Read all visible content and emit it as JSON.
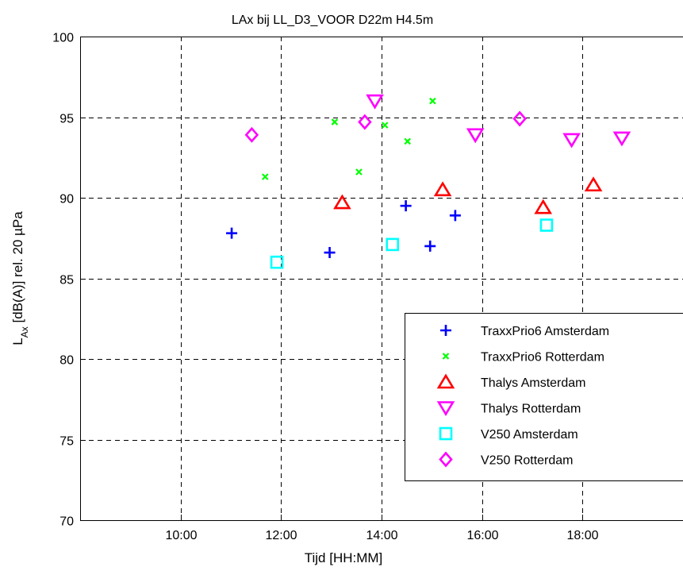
{
  "chart_data": {
    "type": "scatter",
    "title": "LAx bij LL_D3_VOOR D22m H4.5m",
    "xlabel": "Tijd [HH:MM]",
    "ylabel": {
      "main": "L",
      "sub": "Ax",
      "rest": " [dB(A)] rel. 20 µPa"
    },
    "xlim": [
      "08:00",
      "20:00"
    ],
    "ylim": [
      70,
      100
    ],
    "x_ticks": [
      "10:00",
      "12:00",
      "14:00",
      "16:00",
      "18:00"
    ],
    "y_ticks": [
      70,
      75,
      80,
      85,
      90,
      95,
      100
    ],
    "grid": true,
    "legend_position": "lower-right",
    "series": [
      {
        "name": "TraxxPrio6 Amsterdam",
        "marker": "plus",
        "color": "#0000ff",
        "points": [
          {
            "x": "11:01",
            "y": 87.8
          },
          {
            "x": "12:58",
            "y": 86.6
          },
          {
            "x": "14:29",
            "y": 89.5
          },
          {
            "x": "14:58",
            "y": 87.0
          },
          {
            "x": "15:28",
            "y": 88.9
          }
        ]
      },
      {
        "name": "TraxxPrio6 Rotterdam",
        "marker": "x",
        "color": "#00ff00",
        "points": [
          {
            "x": "11:41",
            "y": 91.3
          },
          {
            "x": "13:04",
            "y": 94.7
          },
          {
            "x": "13:33",
            "y": 91.6
          },
          {
            "x": "14:04",
            "y": 94.5
          },
          {
            "x": "14:31",
            "y": 93.5
          },
          {
            "x": "15:01",
            "y": 96.0
          }
        ]
      },
      {
        "name": "Thalys Amsterdam",
        "marker": "triangle-up",
        "color": "#ff0000",
        "points": [
          {
            "x": "13:13",
            "y": 89.7
          },
          {
            "x": "15:13",
            "y": 90.5
          },
          {
            "x": "17:13",
            "y": 89.4
          },
          {
            "x": "18:13",
            "y": 90.8
          }
        ]
      },
      {
        "name": "Thalys Rotterdam",
        "marker": "triangle-down",
        "color": "#ff00ff",
        "points": [
          {
            "x": "13:52",
            "y": 96.0
          },
          {
            "x": "15:52",
            "y": 93.9
          },
          {
            "x": "17:47",
            "y": 93.6
          },
          {
            "x": "18:47",
            "y": 93.7
          }
        ]
      },
      {
        "name": "V250 Amsterdam",
        "marker": "square",
        "color": "#00ffff",
        "points": [
          {
            "x": "11:55",
            "y": 86.0
          },
          {
            "x": "14:13",
            "y": 87.1
          },
          {
            "x": "17:17",
            "y": 88.3
          }
        ]
      },
      {
        "name": "V250 Rotterdam",
        "marker": "diamond",
        "color": "#ff00ff",
        "points": [
          {
            "x": "11:25",
            "y": 93.9
          },
          {
            "x": "13:40",
            "y": 94.7
          },
          {
            "x": "16:45",
            "y": 94.9
          }
        ]
      }
    ]
  }
}
